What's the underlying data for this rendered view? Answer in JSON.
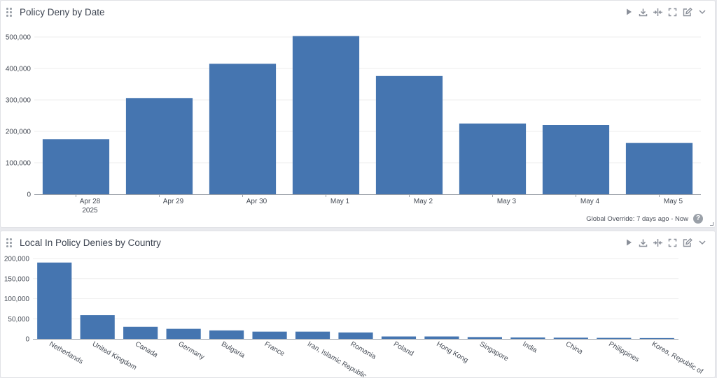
{
  "panels": [
    {
      "title": "Policy Deny by Date",
      "footer": "Global Override: 7 days ago - Now",
      "help_glyph": "?"
    },
    {
      "title": "Local In Policy Denies by Country"
    }
  ],
  "toolbar_icons": [
    "play-icon",
    "download-icon",
    "column-split-icon",
    "fullscreen-icon",
    "edit-icon",
    "chevron-down-icon"
  ],
  "colors": {
    "bar": "#4575b0",
    "grid": "#eeeeee",
    "axis": "#9aa0a8"
  },
  "chart_data": [
    {
      "type": "bar",
      "title": "Policy Deny by Date",
      "categories": [
        "Apr 28",
        "Apr 29",
        "Apr 30",
        "May 1",
        "May 2",
        "May 3",
        "May 4",
        "May 5"
      ],
      "category_sublabels": [
        "2025",
        "",
        "",
        "",
        "",
        "",
        "",
        ""
      ],
      "values": [
        175000,
        306000,
        415000,
        503000,
        376000,
        225000,
        220000,
        163000
      ],
      "ylim": [
        0,
        500000
      ],
      "yticks": [
        0,
        100000,
        200000,
        300000,
        400000,
        500000
      ],
      "ytick_labels": [
        "0",
        "100,000",
        "200,000",
        "300,000",
        "400,000",
        "500,000"
      ],
      "grid": true
    },
    {
      "type": "bar",
      "title": "Local In Policy Denies by Country",
      "categories": [
        "Netherlands",
        "United Kingdom",
        "Canada",
        "Germany",
        "Bulgaria",
        "France",
        "Iran, Islamic Republic",
        "Romania",
        "Poland",
        "Hong Kong",
        "Singapore",
        "India",
        "China",
        "Philippines",
        "Korea, Republic of"
      ],
      "values": [
        190000,
        59000,
        30000,
        25000,
        21000,
        18000,
        18000,
        16000,
        6000,
        6000,
        4500,
        3500,
        3000,
        2500,
        2000
      ],
      "ylim": [
        0,
        200000
      ],
      "yticks": [
        0,
        50000,
        100000,
        150000,
        200000
      ],
      "ytick_labels": [
        "0",
        "50,000",
        "100,000",
        "150,000",
        "200,000"
      ],
      "grid": true
    }
  ]
}
